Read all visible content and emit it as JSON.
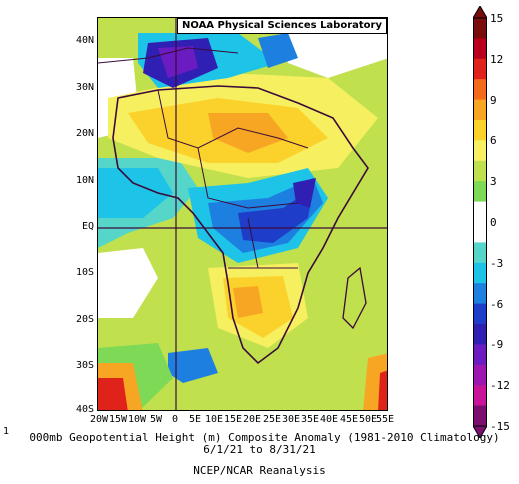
{
  "header": {
    "lab_name": "NOAA Physical Sciences Laboratory"
  },
  "axes": {
    "y_ticks": [
      "40N",
      "30N",
      "20N",
      "10N",
      "EQ",
      "10S",
      "20S",
      "30S",
      "40S"
    ],
    "x_ticks": [
      "20W",
      "15W",
      "10W",
      "5W",
      "0",
      "5E",
      "10E",
      "15E",
      "20E",
      "25E",
      "30E",
      "35E",
      "40E",
      "45E",
      "50E",
      "55E"
    ]
  },
  "caption": {
    "corner_digit": "1",
    "title": "000mb Geopotential Height (m) Composite Anomaly (1981-2010 Climatology)",
    "date_range": "6/1/21 to 8/31/21",
    "source": "NCEP/NCAR Reanalysis"
  },
  "colorbar": {
    "labels": [
      "15",
      "12",
      "9",
      "6",
      "3",
      "0",
      "-3",
      "-6",
      "-9",
      "-12",
      "-15"
    ],
    "colors": [
      "#7a0c0c",
      "#b8001e",
      "#e0231a",
      "#f26a1a",
      "#f7a623",
      "#fbd22c",
      "#f6f061",
      "#c1e04d",
      "#7ed957",
      "#ffffff",
      "#ffffff",
      "#55d6c8",
      "#1ec3e8",
      "#1d7fe0",
      "#1e3dc8",
      "#2f1fb3",
      "#6a1cc0",
      "#9c17b2",
      "#c81499",
      "#7a0d6e"
    ]
  }
}
